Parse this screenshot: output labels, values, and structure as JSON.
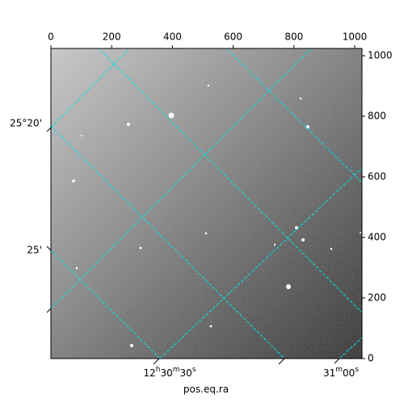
{
  "chart_data": {
    "type": "image",
    "xlabel": "pos.eq.ra",
    "xlim": [
      0,
      1024
    ],
    "ylim": [
      0,
      1024
    ],
    "xticks": [
      0,
      200,
      400,
      600,
      800,
      1000
    ],
    "yticks": [
      0,
      200,
      400,
      600,
      800,
      1000
    ],
    "ra_ticks": [
      "12h30m30s",
      "31m00s"
    ],
    "dec_ticks": [
      "25°20'",
      "25'"
    ],
    "grid_color": "#00e5e5"
  }
}
